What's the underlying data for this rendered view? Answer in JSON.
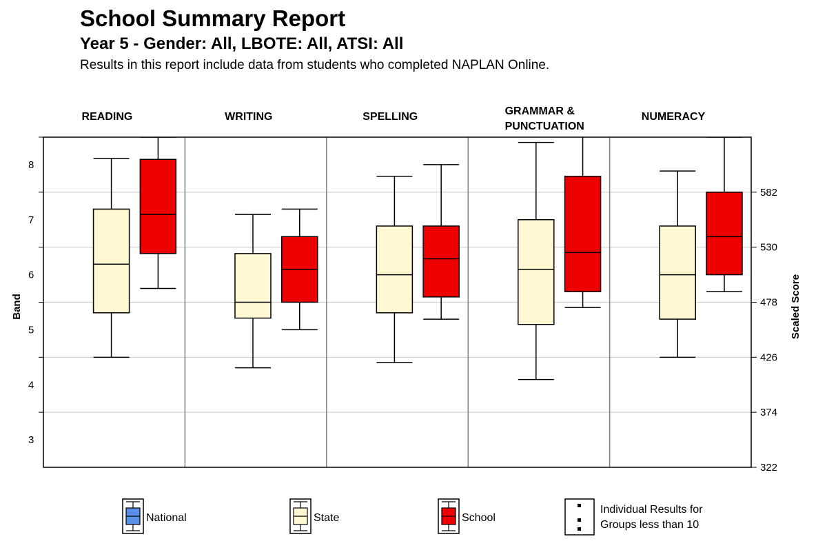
{
  "header": {
    "title": "School Summary Report",
    "subtitle": "Year 5 - Gender: All, LBOTE: All, ATSI: All",
    "note": "Results in this report include data from students who completed NAPLAN Online."
  },
  "chart_data": {
    "type": "boxplot",
    "ylabel_left": "Band",
    "ylabel_right": "Scaled Score",
    "band_ticks": [
      "3",
      "4",
      "5",
      "6",
      "7",
      "8"
    ],
    "score_ticks": [
      "322",
      "374",
      "426",
      "478",
      "530",
      "582"
    ],
    "score_range": [
      322,
      634
    ],
    "grid": true,
    "colors": {
      "National": "#5b8ee6",
      "State": "#fff8d2",
      "School": "#ee0000"
    },
    "categories": [
      {
        "label": [
          "READING"
        ],
        "state": {
          "min": 426,
          "q1": 468,
          "median": 514,
          "q3": 566,
          "max": 614
        },
        "school": {
          "min": 491,
          "q1": 524,
          "median": 561,
          "q3": 613,
          "max": 634
        }
      },
      {
        "label": [
          "WRITING"
        ],
        "state": {
          "min": 416,
          "q1": 463,
          "median": 478,
          "q3": 524,
          "max": 561
        },
        "school": {
          "min": 452,
          "q1": 478,
          "median": 509,
          "q3": 540,
          "max": 566
        }
      },
      {
        "label": [
          "SPELLING"
        ],
        "state": {
          "min": 421,
          "q1": 468,
          "median": 504,
          "q3": 550,
          "max": 597
        },
        "school": {
          "min": 462,
          "q1": 483,
          "median": 519,
          "q3": 550,
          "max": 608
        }
      },
      {
        "label": [
          "GRAMMAR &",
          "PUNCTUATION"
        ],
        "state": {
          "min": 405,
          "q1": 457,
          "median": 509,
          "q3": 556,
          "max": 629
        },
        "school": {
          "min": 473,
          "q1": 488,
          "median": 525,
          "q3": 597,
          "max": 640
        }
      },
      {
        "label": [
          "NUMERACY"
        ],
        "state": {
          "min": 426,
          "q1": 462,
          "median": 504,
          "q3": 550,
          "max": 602
        },
        "school": {
          "min": 488,
          "q1": 504,
          "median": 540,
          "q3": 582,
          "max": 634
        }
      }
    ],
    "legend": [
      {
        "key": "National",
        "label": "National"
      },
      {
        "key": "State",
        "label": "State"
      },
      {
        "key": "School",
        "label": "School"
      },
      {
        "key": "Individual",
        "label": [
          "Individual Results for",
          "Groups less than 10"
        ]
      }
    ]
  }
}
